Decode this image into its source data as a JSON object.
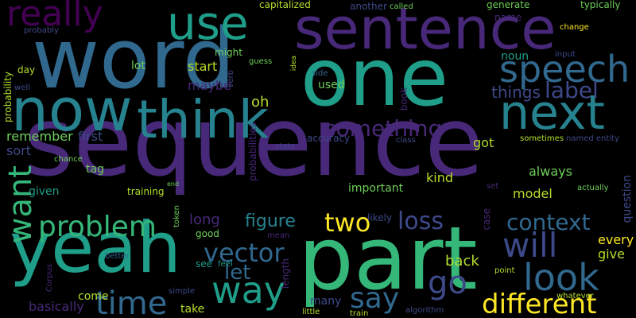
{
  "cloud": {
    "palette": {
      "deep_purple": "#440154",
      "purple": "#482878",
      "indigo": "#3e4989",
      "slate_blue": "#31688e",
      "teal_blue": "#26828e",
      "teal": "#1f9e89",
      "green": "#35b779",
      "light_green": "#6ece58",
      "lime": "#b5de2b",
      "yellow": "#fde725"
    },
    "words": [
      {
        "text": "sequence"
      },
      {
        "text": "word"
      },
      {
        "text": "one"
      },
      {
        "text": "part"
      },
      {
        "text": "yeah"
      },
      {
        "text": "sentence"
      },
      {
        "text": "now"
      },
      {
        "text": "think"
      },
      {
        "text": "next"
      },
      {
        "text": "use"
      },
      {
        "text": "speech"
      },
      {
        "text": "really"
      },
      {
        "text": "way"
      },
      {
        "text": "time"
      },
      {
        "text": "look"
      },
      {
        "text": "want"
      },
      {
        "text": "problem"
      },
      {
        "text": "different"
      },
      {
        "text": "will"
      },
      {
        "text": "vector"
      },
      {
        "text": "say"
      },
      {
        "text": "go"
      },
      {
        "text": "context"
      },
      {
        "text": "two"
      },
      {
        "text": "something"
      },
      {
        "text": "label"
      },
      {
        "text": "loss"
      },
      {
        "text": "figure"
      },
      {
        "text": "let"
      },
      {
        "text": "things"
      },
      {
        "text": "oh"
      },
      {
        "text": "remember"
      },
      {
        "text": "back"
      },
      {
        "text": "start"
      },
      {
        "text": "maybe"
      },
      {
        "text": "model"
      },
      {
        "text": "first"
      },
      {
        "text": "kind"
      },
      {
        "text": "got"
      },
      {
        "text": "important"
      },
      {
        "text": "tag"
      },
      {
        "text": "always"
      },
      {
        "text": "noun"
      },
      {
        "text": "used"
      },
      {
        "text": "lot"
      },
      {
        "text": "every"
      },
      {
        "text": "give"
      },
      {
        "text": "come"
      },
      {
        "text": "take"
      },
      {
        "text": "many"
      },
      {
        "text": "long"
      },
      {
        "text": "basically"
      },
      {
        "text": "question"
      },
      {
        "text": "sort"
      },
      {
        "text": "probability"
      },
      {
        "text": "given"
      },
      {
        "text": "training"
      },
      {
        "text": "length"
      },
      {
        "text": "good"
      },
      {
        "text": "see"
      },
      {
        "text": "probabilities"
      },
      {
        "text": "might"
      },
      {
        "text": "capitalized"
      },
      {
        "text": "another"
      },
      {
        "text": "called"
      },
      {
        "text": "generate"
      },
      {
        "text": "typically"
      },
      {
        "text": "name"
      },
      {
        "text": "change"
      },
      {
        "text": "probably"
      },
      {
        "text": "day"
      },
      {
        "text": "well"
      },
      {
        "text": "guess"
      },
      {
        "text": "input"
      },
      {
        "text": "idea"
      },
      {
        "text": "verb"
      },
      {
        "text": "side"
      },
      {
        "text": "book"
      },
      {
        "text": "accuracy"
      },
      {
        "text": "sometimes"
      },
      {
        "text": "named entity"
      },
      {
        "text": "state"
      },
      {
        "text": "class"
      },
      {
        "text": "chance"
      },
      {
        "text": "end"
      },
      {
        "text": "token"
      },
      {
        "text": "likely"
      },
      {
        "text": "set"
      },
      {
        "text": "actually"
      },
      {
        "text": "mean"
      },
      {
        "text": "case"
      },
      {
        "text": "feel"
      },
      {
        "text": "better"
      },
      {
        "text": "Corpus"
      },
      {
        "text": "simple"
      },
      {
        "text": "point"
      },
      {
        "text": "whatever"
      },
      {
        "text": "little"
      },
      {
        "text": "train"
      },
      {
        "text": "algorithm"
      }
    ]
  }
}
